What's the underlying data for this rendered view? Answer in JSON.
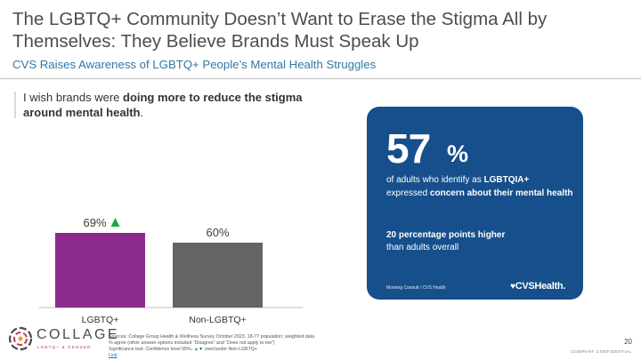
{
  "slide": {
    "title": "The LGBTQ+ Community Doesn’t Want to Erase the Stigma All by Themselves: They Believe Brands Must Speak Up",
    "subtitle": "CVS Raises Awareness of LGBTQ+ People’s Mental Health Struggles",
    "lead_prefix": "I wish brands were ",
    "lead_bold": "doing more to reduce the stigma around mental health",
    "lead_suffix": "."
  },
  "chart_data": {
    "type": "bar",
    "categories": [
      "LGBTQ+",
      "Non-LGBTQ+"
    ],
    "values": [
      69,
      60
    ],
    "value_labels": [
      "69%",
      "60%"
    ],
    "unit": "%",
    "ylim": [
      0,
      100
    ],
    "grid": false,
    "legend": "none",
    "colors": [
      "#8d2a8e",
      "#646466"
    ],
    "significance": [
      "up",
      null
    ],
    "significance_color": "#1aa84a"
  },
  "card": {
    "stat_number": "57",
    "stat_unit": "%",
    "line1": "of adults who identify as ",
    "line1_bold": "LGBTQIA+",
    "line2": "expressed ",
    "line2_bold": "concern about their mental health",
    "line3_bold": "20 percentage points higher",
    "line3": "than adults overall",
    "source": "Morning Consult / CVS Health",
    "logo_text": "CVSHealth.",
    "bg_color": "#164f8c"
  },
  "footer": {
    "logo_word": "COLLAGE",
    "logo_sub": "LGBTQ+ & GENDER",
    "sources_line1": "Sources: Collage Group Health & Wellness Survey October 2023, 18-77 population; weighted data",
    "sources_line2": "% agree (other answer options included “Disagree” and “Does not apply to me”)",
    "sources_line3_prefix": "Significance test: Confidence level 95%.",
    "sources_line3_suffix": "over/under Non-LGBTQ+",
    "sources_link": "Link",
    "page_number": "20",
    "confidential": "COMPANY CONFIDENTIAL"
  }
}
